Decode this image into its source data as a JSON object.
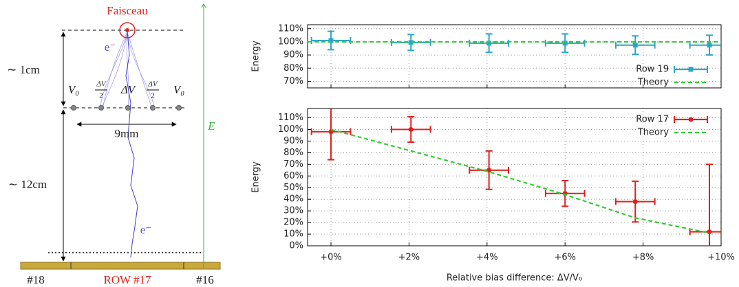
{
  "diagram": {
    "beam": "Faisceau",
    "electron_top": "e⁻",
    "electron_bottom": "e⁻",
    "gap_top": "∼ 1cm",
    "gap_bottom": "∼ 12cm",
    "v_left": "V₀",
    "half_left_num": "ΔV",
    "half_left_den": "2",
    "delta_v": "ΔV",
    "half_right_num": "ΔV",
    "half_right_den": "2",
    "v_right": "V₀",
    "width": "9mm",
    "field": "E⃗",
    "row_left": "#18",
    "row_center": "ROW #17",
    "row_right": "#16"
  },
  "chart_data": [
    {
      "type": "errorbar",
      "ylabel": "Energy",
      "x": [
        0,
        2.05,
        4.05,
        6,
        7.8,
        9.7
      ],
      "xlim": [
        -0.6,
        10
      ],
      "xticks": [
        0,
        2,
        4,
        6,
        8,
        10
      ],
      "show_xtick_labels": false,
      "ylim": [
        65,
        113
      ],
      "yticks": [
        {
          "value": 70,
          "label": "70%"
        },
        {
          "value": 80,
          "label": "80%"
        },
        {
          "value": 90,
          "label": "90%"
        },
        {
          "value": 100,
          "label": "100%"
        },
        {
          "value": 110,
          "label": "110%"
        }
      ],
      "grid": true,
      "legend": "lower right",
      "series": [
        {
          "name": "Row 19",
          "color": "#2aa6c8",
          "marker": "square",
          "values": [
            101,
            99.5,
            99,
            99,
            97.5,
            97.5
          ],
          "yerr": [
            7,
            6,
            7,
            7,
            7,
            7.5
          ],
          "xerr": [
            0.5,
            0.5,
            0.5,
            0.5,
            0.5,
            0.5
          ]
        },
        {
          "name": "Theory",
          "color": "#33cc33",
          "linestyle": "dashed",
          "x": [
            -0.6,
            10
          ],
          "values": [
            100,
            100
          ]
        }
      ]
    },
    {
      "type": "errorbar",
      "ylabel": "Energy",
      "xlabel": "Relative bias difference: ΔV/V₀",
      "x": [
        0,
        2.05,
        4.05,
        6,
        7.8,
        9.7
      ],
      "xlim": [
        -0.6,
        10
      ],
      "xticks": [
        {
          "value": 0,
          "label": "+0%"
        },
        {
          "value": 2,
          "label": "+2%"
        },
        {
          "value": 4,
          "label": "+4%"
        },
        {
          "value": 6,
          "label": "+6%"
        },
        {
          "value": 8,
          "label": "+8%"
        },
        {
          "value": 10,
          "label": "+10%"
        }
      ],
      "show_xtick_labels": true,
      "ylim": [
        0,
        118
      ],
      "yticks": [
        {
          "value": 0,
          "label": "0%"
        },
        {
          "value": 10,
          "label": "10%"
        },
        {
          "value": 20,
          "label": "20%"
        },
        {
          "value": 30,
          "label": "30%"
        },
        {
          "value": 40,
          "label": "40%"
        },
        {
          "value": 50,
          "label": "50%"
        },
        {
          "value": 60,
          "label": "60%"
        },
        {
          "value": 70,
          "label": "70%"
        },
        {
          "value": 80,
          "label": "80%"
        },
        {
          "value": 90,
          "label": "90%"
        },
        {
          "value": 100,
          "label": "100%"
        },
        {
          "value": 110,
          "label": "110%"
        }
      ],
      "grid": true,
      "legend": "upper right",
      "series": [
        {
          "name": "Row 17",
          "color": "#e0201c",
          "marker": "circle",
          "values": [
            98,
            100,
            65,
            45,
            38,
            12
          ],
          "yerr": [
            24,
            11,
            16.5,
            11,
            17.5,
            58
          ],
          "xerr": [
            0.5,
            0.5,
            0.5,
            0.5,
            0.5,
            0.5
          ]
        },
        {
          "name": "Theory",
          "color": "#33cc33",
          "linestyle": "dashed",
          "x": [
            0,
            2,
            4,
            6,
            7.8,
            9.7
          ],
          "values": [
            100,
            82,
            64,
            44,
            24,
            11
          ]
        }
      ]
    }
  ]
}
